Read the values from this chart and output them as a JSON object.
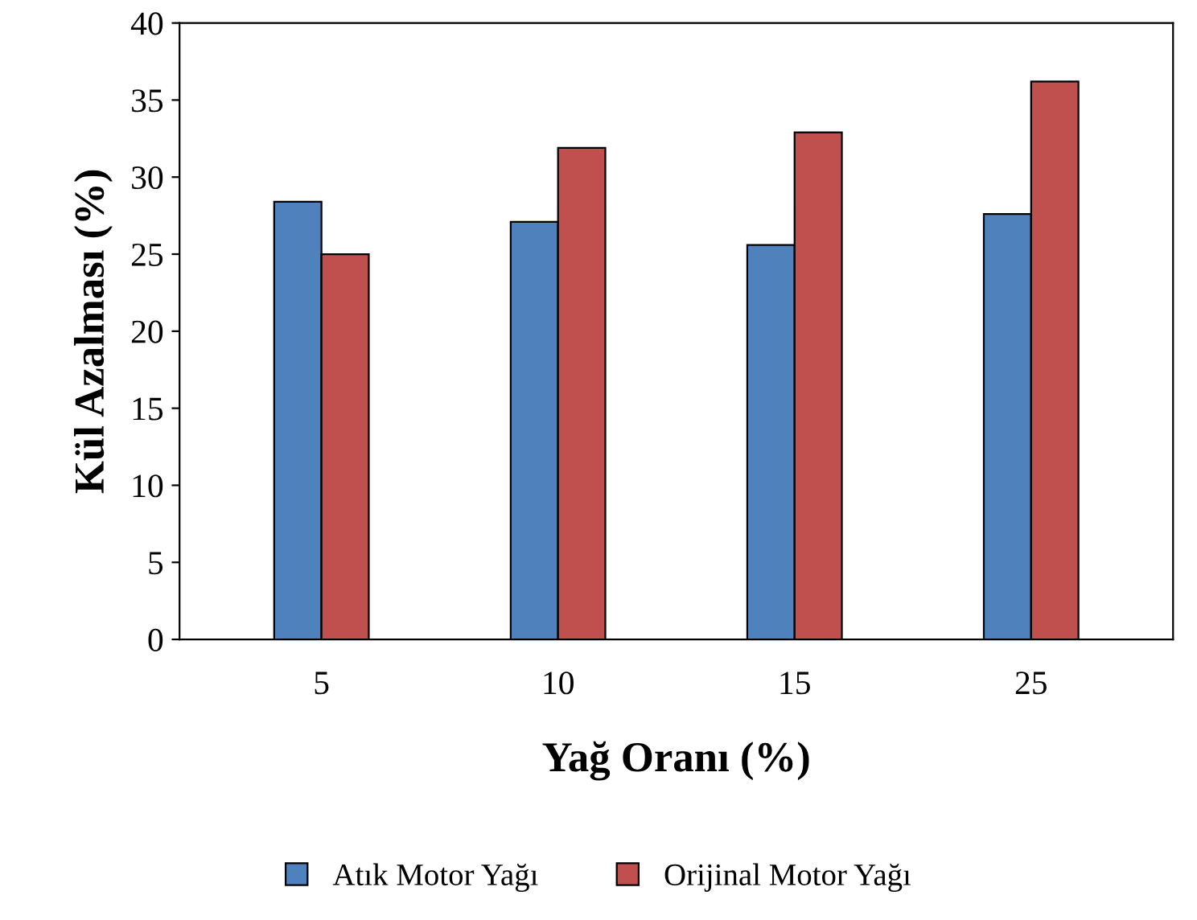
{
  "chart_data": {
    "type": "bar",
    "xlabel": "Yağ Oranı (%)",
    "ylabel": "Kül Azalması (%)",
    "categories": [
      "5",
      "10",
      "15",
      "25"
    ],
    "series": [
      {
        "name": "Atık Motor Yağı",
        "color": "#4f81bd",
        "values": [
          28.4,
          27.1,
          25.6,
          27.6
        ]
      },
      {
        "name": "Orijinal Motor Yağı",
        "color": "#c0504d",
        "values": [
          25.0,
          31.9,
          32.9,
          36.2
        ]
      }
    ],
    "ylim": [
      0,
      40
    ],
    "yticks": [
      0,
      5,
      10,
      15,
      20,
      25,
      30,
      35,
      40
    ],
    "grid": false,
    "legend": "bottom"
  }
}
